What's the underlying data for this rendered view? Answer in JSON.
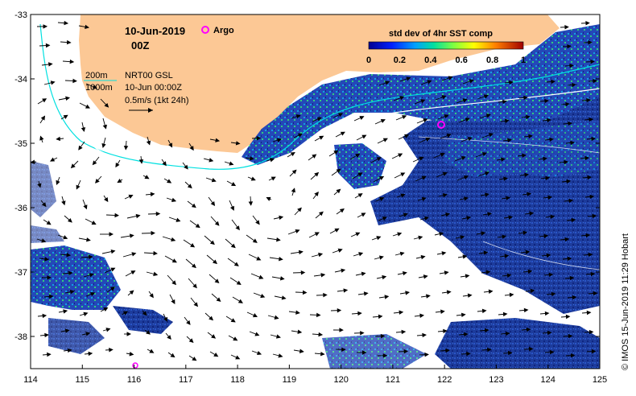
{
  "header": {
    "date": "10-Jun-2019",
    "hour": "00Z",
    "argo_label": "Argo",
    "argo_color": "#ff00ff"
  },
  "colorbar": {
    "title": "std dev of 4hr SST comp",
    "ticks": [
      "0",
      "0.2",
      "0.4",
      "0.6",
      "0.8",
      "1"
    ]
  },
  "legend": {
    "contour1": "200m",
    "contour2": "1000m",
    "product": "NRT00 GSL",
    "datetime": "10-Jun 00:00Z",
    "scale": "0.5m/s (1kt 24h)"
  },
  "axes": {
    "x_ticks": [
      "114",
      "115",
      "116",
      "117",
      "118",
      "119",
      "120",
      "121",
      "122",
      "123",
      "124",
      "125"
    ],
    "y_ticks": [
      "-33",
      "-34",
      "-35",
      "-36",
      "-37",
      "-38"
    ],
    "x_range": [
      114,
      125
    ],
    "y_range": [
      -38.5,
      -33
    ]
  },
  "credit": "© IMOS 15-Jun-2019 11:29 Hobart",
  "colors": {
    "land": "#fcc895",
    "ocean_blue": "#1a3aa0",
    "contour_200": "#00e0e0",
    "contour_1000": "#ffffff"
  }
}
